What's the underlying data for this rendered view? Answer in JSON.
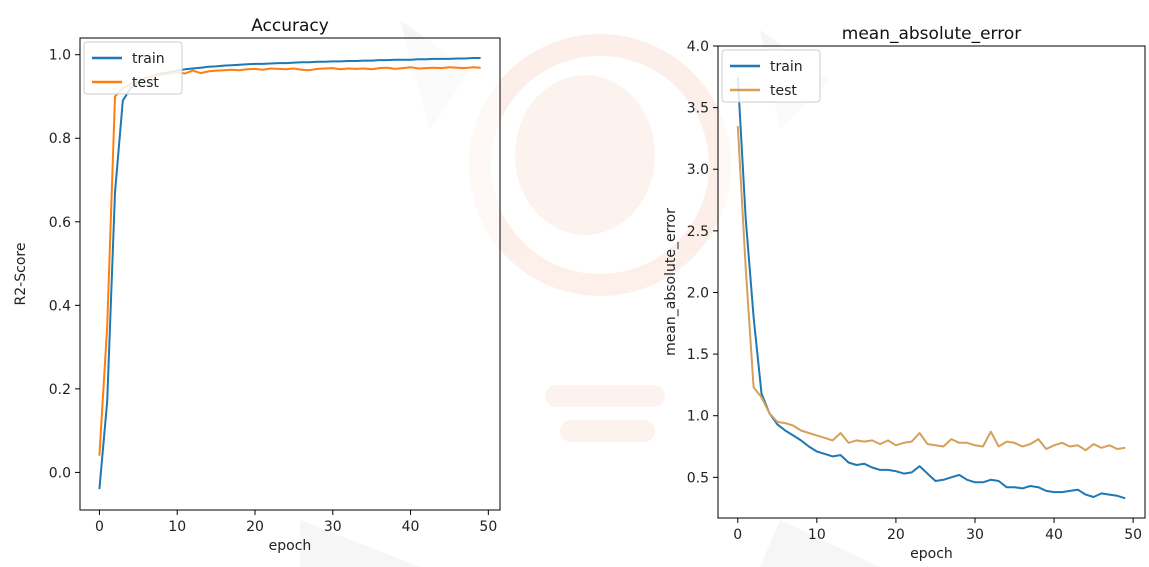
{
  "chart_data": [
    {
      "type": "line",
      "title": "Accuracy",
      "xlabel": "epoch",
      "ylabel": "R2-Score",
      "xlim": [
        -2.5,
        51.5
      ],
      "ylim": [
        -0.09,
        1.04
      ],
      "xticks": [
        "0",
        "10",
        "20",
        "30",
        "40",
        "50"
      ],
      "yticks": [
        "0.0",
        "0.2",
        "0.4",
        "0.6",
        "0.8",
        "1.0"
      ],
      "legend": "top-left",
      "grid": false,
      "colors": {
        "train": "#1f77b4",
        "test": "#ff7f0e"
      },
      "x": [
        0,
        1,
        2,
        3,
        4,
        5,
        6,
        7,
        8,
        9,
        10,
        11,
        12,
        13,
        14,
        15,
        16,
        17,
        18,
        19,
        20,
        21,
        22,
        23,
        24,
        25,
        26,
        27,
        28,
        29,
        30,
        31,
        32,
        33,
        34,
        35,
        36,
        37,
        38,
        39,
        40,
        41,
        42,
        43,
        44,
        45,
        46,
        47,
        48,
        49
      ],
      "series": [
        {
          "name": "train",
          "values": [
            -0.04,
            0.17,
            0.67,
            0.89,
            0.92,
            0.935,
            0.945,
            0.95,
            0.955,
            0.958,
            0.962,
            0.965,
            0.967,
            0.969,
            0.971,
            0.972,
            0.974,
            0.975,
            0.976,
            0.977,
            0.978,
            0.978,
            0.979,
            0.98,
            0.98,
            0.981,
            0.982,
            0.982,
            0.983,
            0.983,
            0.984,
            0.984,
            0.985,
            0.985,
            0.986,
            0.986,
            0.987,
            0.987,
            0.988,
            0.988,
            0.988,
            0.989,
            0.989,
            0.99,
            0.99,
            0.99,
            0.991,
            0.991,
            0.992,
            0.992
          ]
        },
        {
          "name": "test",
          "values": [
            0.04,
            0.35,
            0.9,
            0.92,
            0.93,
            0.94,
            0.945,
            0.95,
            0.952,
            0.955,
            0.958,
            0.955,
            0.962,
            0.956,
            0.96,
            0.962,
            0.963,
            0.964,
            0.963,
            0.965,
            0.966,
            0.964,
            0.967,
            0.966,
            0.965,
            0.967,
            0.964,
            0.963,
            0.966,
            0.967,
            0.968,
            0.965,
            0.967,
            0.966,
            0.967,
            0.965,
            0.968,
            0.969,
            0.966,
            0.968,
            0.97,
            0.967,
            0.968,
            0.969,
            0.968,
            0.97,
            0.969,
            0.968,
            0.97,
            0.969
          ]
        }
      ]
    },
    {
      "type": "line",
      "title": "mean_absolute_error",
      "xlabel": "epoch",
      "ylabel": "mean_absolute_error",
      "xlim": [
        -2.5,
        51.5
      ],
      "ylim": [
        0.17,
        4.0
      ],
      "xticks": [
        "0",
        "10",
        "20",
        "30",
        "40",
        "50"
      ],
      "yticks": [
        "0.5",
        "1.0",
        "1.5",
        "2.0",
        "2.5",
        "3.0",
        "3.5",
        "4.0"
      ],
      "legend": "top-left",
      "grid": false,
      "colors": {
        "train": "#1f77b4",
        "test": "#d4a05a"
      },
      "x": [
        0,
        1,
        2,
        3,
        4,
        5,
        6,
        7,
        8,
        9,
        10,
        11,
        12,
        13,
        14,
        15,
        16,
        17,
        18,
        19,
        20,
        21,
        22,
        23,
        24,
        25,
        26,
        27,
        28,
        29,
        30,
        31,
        32,
        33,
        34,
        35,
        36,
        37,
        38,
        39,
        40,
        41,
        42,
        43,
        44,
        45,
        46,
        47,
        48,
        49
      ],
      "series": [
        {
          "name": "train",
          "values": [
            3.75,
            2.6,
            1.8,
            1.18,
            1.02,
            0.93,
            0.88,
            0.84,
            0.8,
            0.75,
            0.71,
            0.69,
            0.67,
            0.68,
            0.62,
            0.6,
            0.61,
            0.58,
            0.56,
            0.56,
            0.55,
            0.53,
            0.54,
            0.59,
            0.53,
            0.47,
            0.48,
            0.5,
            0.52,
            0.48,
            0.46,
            0.46,
            0.48,
            0.47,
            0.42,
            0.42,
            0.41,
            0.43,
            0.42,
            0.39,
            0.38,
            0.38,
            0.39,
            0.4,
            0.36,
            0.34,
            0.37,
            0.36,
            0.35,
            0.33
          ]
        },
        {
          "name": "test",
          "values": [
            3.35,
            2.2,
            1.23,
            1.15,
            1.02,
            0.95,
            0.94,
            0.92,
            0.88,
            0.86,
            0.84,
            0.82,
            0.8,
            0.86,
            0.78,
            0.8,
            0.79,
            0.8,
            0.77,
            0.8,
            0.76,
            0.78,
            0.79,
            0.86,
            0.77,
            0.76,
            0.75,
            0.81,
            0.78,
            0.78,
            0.76,
            0.75,
            0.87,
            0.75,
            0.79,
            0.78,
            0.75,
            0.77,
            0.81,
            0.73,
            0.76,
            0.78,
            0.75,
            0.76,
            0.72,
            0.77,
            0.74,
            0.76,
            0.73,
            0.74
          ]
        }
      ]
    }
  ]
}
